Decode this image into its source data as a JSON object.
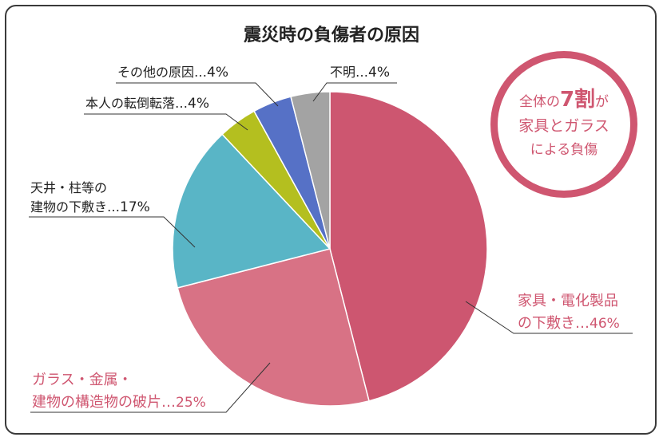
{
  "chart_data": {
    "type": "pie",
    "title": "震災時の負傷者の原因",
    "slices": [
      {
        "name": "家具・電化製品の下敷き",
        "value": 46,
        "color": "#cd5670"
      },
      {
        "name": "ガラス・金属・建物の構造物の破片",
        "value": 25,
        "color": "#d87285"
      },
      {
        "name": "天井・柱等の建物の下敷き",
        "value": 17,
        "color": "#59b5c6"
      },
      {
        "name": "本人の転倒転落",
        "value": 4,
        "color": "#b4bf1f"
      },
      {
        "name": "その他の原因",
        "value": 4,
        "color": "#5671c6"
      },
      {
        "name": "不明",
        "value": 4,
        "color": "#a3a3a3"
      }
    ]
  },
  "labels": {
    "furniture_line1": "家具・電化製品",
    "furniture_line2": "の下敷き…",
    "furniture_pct": "46%",
    "glass_line1": "ガラス・金属・",
    "glass_line2": "建物の構造物の破片…",
    "glass_pct": "25%",
    "ceiling_line1": "天井・柱等の",
    "ceiling_line2": "建物の下敷き…",
    "ceiling_pct": "17%",
    "fall_text": "本人の転倒転落…",
    "fall_pct": "4%",
    "other_text": "その他の原因…",
    "other_pct": "4%",
    "unknown_text": "不明…",
    "unknown_pct": "4%"
  },
  "badge": {
    "pre": "全体の",
    "big": "7割",
    "post": "が",
    "line2": "家具とガラス",
    "line3": "による負傷"
  }
}
